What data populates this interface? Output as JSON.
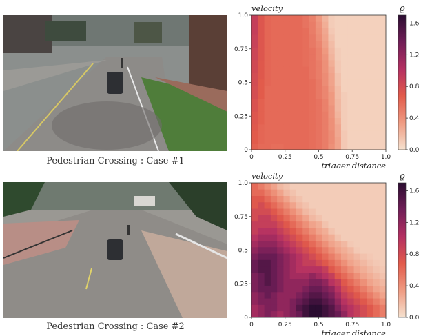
{
  "panels": [
    {
      "caption": "Pedestrian Crossing : Case #1",
      "photo": "driving-scene-intersection-pedestrian"
    },
    {
      "caption": "Pedestrian Crossing : Case #2",
      "photo": "driving-scene-crosswalk-pedestrian"
    }
  ],
  "colormap": [
    "#f5e1cf",
    "#ef9b82",
    "#e25b4b",
    "#b43062",
    "#701e57",
    "#2b0d31"
  ],
  "chart_data": [
    {
      "type": "heatmap",
      "title": "",
      "xlabel": "trigger distance",
      "ylabel": "velocity",
      "colorbar_label": "ϱ",
      "xlim": [
        0,
        1
      ],
      "ylim": [
        0,
        1
      ],
      "xticks": [
        "0",
        "0.25",
        "0.5",
        "0.75",
        "1.0"
      ],
      "yticks": [
        "0",
        "0.25",
        "0.5",
        "0.75",
        "1.0"
      ],
      "colorbar_range": [
        0,
        1.7
      ],
      "colorbar_ticks": [
        "0.0",
        "0.4",
        "0.8",
        "1.2",
        "1.6"
      ],
      "grid_size": 21,
      "description_of_values": "value grid rows from velocity 0 (bottom) to 1 (top), columns trigger distance 0 to 1",
      "values": [
        [
          0.65,
          0.6,
          0.6,
          0.58,
          0.58,
          0.6,
          0.6,
          0.6,
          0.6,
          0.58,
          0.55,
          0.5,
          0.4,
          0.3,
          0.12,
          0.08,
          0.08,
          0.08,
          0.08,
          0.08,
          0.08
        ],
        [
          0.68,
          0.62,
          0.6,
          0.6,
          0.6,
          0.6,
          0.6,
          0.6,
          0.6,
          0.58,
          0.55,
          0.5,
          0.42,
          0.3,
          0.12,
          0.08,
          0.08,
          0.08,
          0.08,
          0.08,
          0.08
        ],
        [
          0.68,
          0.62,
          0.6,
          0.6,
          0.6,
          0.6,
          0.6,
          0.6,
          0.6,
          0.58,
          0.55,
          0.5,
          0.42,
          0.28,
          0.12,
          0.08,
          0.08,
          0.08,
          0.08,
          0.08,
          0.08
        ],
        [
          0.7,
          0.62,
          0.6,
          0.6,
          0.6,
          0.6,
          0.6,
          0.6,
          0.6,
          0.58,
          0.55,
          0.5,
          0.4,
          0.28,
          0.1,
          0.08,
          0.08,
          0.08,
          0.08,
          0.08,
          0.08
        ],
        [
          0.72,
          0.65,
          0.6,
          0.6,
          0.6,
          0.6,
          0.6,
          0.6,
          0.6,
          0.58,
          0.55,
          0.5,
          0.4,
          0.25,
          0.1,
          0.08,
          0.08,
          0.08,
          0.08,
          0.08,
          0.08
        ],
        [
          0.72,
          0.65,
          0.6,
          0.6,
          0.6,
          0.6,
          0.6,
          0.6,
          0.6,
          0.58,
          0.55,
          0.5,
          0.38,
          0.22,
          0.1,
          0.08,
          0.08,
          0.08,
          0.08,
          0.08,
          0.08
        ],
        [
          0.75,
          0.65,
          0.6,
          0.6,
          0.6,
          0.6,
          0.6,
          0.6,
          0.6,
          0.58,
          0.55,
          0.48,
          0.38,
          0.2,
          0.1,
          0.08,
          0.08,
          0.08,
          0.08,
          0.08,
          0.08
        ],
        [
          0.75,
          0.65,
          0.6,
          0.6,
          0.6,
          0.6,
          0.6,
          0.6,
          0.6,
          0.58,
          0.55,
          0.48,
          0.35,
          0.2,
          0.1,
          0.08,
          0.08,
          0.08,
          0.08,
          0.08,
          0.08
        ],
        [
          0.78,
          0.68,
          0.6,
          0.6,
          0.6,
          0.6,
          0.6,
          0.6,
          0.6,
          0.58,
          0.52,
          0.45,
          0.35,
          0.18,
          0.1,
          0.08,
          0.08,
          0.08,
          0.08,
          0.08,
          0.08
        ],
        [
          0.78,
          0.68,
          0.6,
          0.6,
          0.6,
          0.6,
          0.6,
          0.6,
          0.6,
          0.58,
          0.52,
          0.45,
          0.32,
          0.18,
          0.08,
          0.08,
          0.08,
          0.08,
          0.08,
          0.08,
          0.08
        ],
        [
          0.8,
          0.68,
          0.62,
          0.6,
          0.6,
          0.6,
          0.6,
          0.6,
          0.6,
          0.58,
          0.52,
          0.42,
          0.3,
          0.15,
          0.08,
          0.08,
          0.08,
          0.08,
          0.08,
          0.08,
          0.08
        ],
        [
          0.8,
          0.7,
          0.62,
          0.6,
          0.6,
          0.6,
          0.6,
          0.6,
          0.6,
          0.55,
          0.5,
          0.42,
          0.3,
          0.15,
          0.08,
          0.08,
          0.08,
          0.08,
          0.08,
          0.08,
          0.08
        ],
        [
          0.82,
          0.7,
          0.62,
          0.6,
          0.6,
          0.6,
          0.6,
          0.6,
          0.6,
          0.55,
          0.5,
          0.4,
          0.28,
          0.12,
          0.08,
          0.08,
          0.08,
          0.08,
          0.08,
          0.08,
          0.08
        ],
        [
          0.82,
          0.7,
          0.62,
          0.6,
          0.6,
          0.6,
          0.6,
          0.6,
          0.58,
          0.55,
          0.5,
          0.4,
          0.25,
          0.12,
          0.08,
          0.08,
          0.08,
          0.08,
          0.08,
          0.08,
          0.08
        ],
        [
          0.85,
          0.72,
          0.62,
          0.6,
          0.6,
          0.6,
          0.6,
          0.6,
          0.58,
          0.55,
          0.48,
          0.38,
          0.22,
          0.1,
          0.08,
          0.08,
          0.08,
          0.08,
          0.08,
          0.08,
          0.08
        ],
        [
          0.85,
          0.72,
          0.62,
          0.6,
          0.6,
          0.6,
          0.6,
          0.6,
          0.58,
          0.55,
          0.48,
          0.35,
          0.2,
          0.1,
          0.08,
          0.08,
          0.08,
          0.08,
          0.08,
          0.08,
          0.08
        ],
        [
          0.88,
          0.72,
          0.62,
          0.6,
          0.6,
          0.6,
          0.6,
          0.6,
          0.58,
          0.52,
          0.45,
          0.32,
          0.18,
          0.08,
          0.08,
          0.08,
          0.08,
          0.08,
          0.08,
          0.08,
          0.08
        ],
        [
          0.88,
          0.72,
          0.62,
          0.6,
          0.6,
          0.6,
          0.6,
          0.6,
          0.58,
          0.52,
          0.42,
          0.3,
          0.15,
          0.08,
          0.08,
          0.08,
          0.08,
          0.08,
          0.08,
          0.08,
          0.08
        ],
        [
          0.9,
          0.72,
          0.62,
          0.6,
          0.6,
          0.6,
          0.6,
          0.6,
          0.58,
          0.5,
          0.4,
          0.28,
          0.12,
          0.08,
          0.08,
          0.08,
          0.08,
          0.08,
          0.08,
          0.08,
          0.08
        ],
        [
          0.9,
          0.72,
          0.62,
          0.6,
          0.6,
          0.6,
          0.6,
          0.6,
          0.55,
          0.5,
          0.38,
          0.25,
          0.1,
          0.08,
          0.08,
          0.08,
          0.08,
          0.08,
          0.08,
          0.08,
          0.08
        ],
        [
          0.9,
          0.72,
          0.62,
          0.6,
          0.6,
          0.6,
          0.6,
          0.6,
          0.55,
          0.48,
          0.35,
          0.22,
          0.1,
          0.08,
          0.08,
          0.08,
          0.08,
          0.08,
          0.08,
          0.08,
          0.08
        ]
      ]
    },
    {
      "type": "heatmap",
      "title": "",
      "xlabel": "trigger distance",
      "ylabel": "velocity",
      "colorbar_label": "ϱ",
      "xlim": [
        0,
        1
      ],
      "ylim": [
        0,
        1
      ],
      "xticks": [
        "0",
        "0.25",
        "0.5",
        "0.75",
        "1.0"
      ],
      "yticks": [
        "0",
        "0.25",
        "0.5",
        "0.75",
        "1.0"
      ],
      "colorbar_range": [
        0,
        1.7
      ],
      "colorbar_ticks": [
        "0.0",
        "0.4",
        "0.8",
        "1.2",
        "1.6"
      ],
      "grid_size": 21,
      "description_of_values": "value grid rows from velocity 0 (bottom) to 1 (top), columns trigger distance 0 to 1",
      "values": [
        [
          1.1,
          1.2,
          1.3,
          1.2,
          1.1,
          1.2,
          1.3,
          1.4,
          1.6,
          1.7,
          1.7,
          1.6,
          1.5,
          1.4,
          1.2,
          1.0,
          0.9,
          0.8,
          0.7,
          0.6,
          0.5
        ],
        [
          1.1,
          1.2,
          1.3,
          1.3,
          1.2,
          1.2,
          1.3,
          1.5,
          1.6,
          1.7,
          1.7,
          1.6,
          1.5,
          1.3,
          1.1,
          1.0,
          0.9,
          0.8,
          0.7,
          0.6,
          0.5
        ],
        [
          1.2,
          1.3,
          1.3,
          1.3,
          1.2,
          1.2,
          1.3,
          1.4,
          1.5,
          1.6,
          1.6,
          1.5,
          1.4,
          1.2,
          1.0,
          0.9,
          0.8,
          0.7,
          0.6,
          0.5,
          0.4
        ],
        [
          1.2,
          1.3,
          1.4,
          1.3,
          1.2,
          1.2,
          1.2,
          1.3,
          1.4,
          1.5,
          1.5,
          1.4,
          1.3,
          1.1,
          0.9,
          0.8,
          0.7,
          0.6,
          0.5,
          0.4,
          0.3
        ],
        [
          1.3,
          1.4,
          1.4,
          1.4,
          1.3,
          1.2,
          1.2,
          1.2,
          1.3,
          1.4,
          1.4,
          1.3,
          1.2,
          1.0,
          0.8,
          0.7,
          0.6,
          0.5,
          0.4,
          0.3,
          0.25
        ],
        [
          1.3,
          1.4,
          1.5,
          1.4,
          1.3,
          1.2,
          1.2,
          1.2,
          1.2,
          1.3,
          1.3,
          1.2,
          1.0,
          0.9,
          0.7,
          0.6,
          0.5,
          0.4,
          0.3,
          0.25,
          0.2
        ],
        [
          1.3,
          1.4,
          1.5,
          1.4,
          1.3,
          1.2,
          1.1,
          1.1,
          1.1,
          1.2,
          1.1,
          1.0,
          0.9,
          0.7,
          0.6,
          0.5,
          0.4,
          0.3,
          0.25,
          0.2,
          0.15
        ],
        [
          1.4,
          1.5,
          1.5,
          1.4,
          1.3,
          1.2,
          1.1,
          1.0,
          1.0,
          1.0,
          1.0,
          0.9,
          0.7,
          0.6,
          0.5,
          0.4,
          0.3,
          0.25,
          0.2,
          0.15,
          0.12
        ],
        [
          1.4,
          1.5,
          1.5,
          1.4,
          1.3,
          1.2,
          1.1,
          1.0,
          0.9,
          0.9,
          0.8,
          0.7,
          0.6,
          0.5,
          0.4,
          0.3,
          0.25,
          0.2,
          0.15,
          0.12,
          0.1
        ],
        [
          1.3,
          1.4,
          1.4,
          1.4,
          1.3,
          1.2,
          1.1,
          1.0,
          0.9,
          0.8,
          0.7,
          0.6,
          0.5,
          0.4,
          0.3,
          0.25,
          0.2,
          0.15,
          0.12,
          0.1,
          0.1
        ],
        [
          1.2,
          1.3,
          1.3,
          1.3,
          1.2,
          1.1,
          1.0,
          0.9,
          0.8,
          0.7,
          0.6,
          0.5,
          0.4,
          0.3,
          0.25,
          0.2,
          0.12,
          0.1,
          0.1,
          0.1,
          0.1
        ],
        [
          1.1,
          1.2,
          1.2,
          1.2,
          1.1,
          1.0,
          0.9,
          0.8,
          0.7,
          0.6,
          0.5,
          0.4,
          0.3,
          0.25,
          0.2,
          0.12,
          0.1,
          0.1,
          0.1,
          0.1,
          0.1
        ],
        [
          1.0,
          1.1,
          1.1,
          1.1,
          1.0,
          0.9,
          0.8,
          0.7,
          0.6,
          0.5,
          0.4,
          0.3,
          0.25,
          0.15,
          0.1,
          0.1,
          0.1,
          0.1,
          0.1,
          0.1,
          0.1
        ],
        [
          0.9,
          1.0,
          1.0,
          1.0,
          0.9,
          0.8,
          0.7,
          0.6,
          0.5,
          0.4,
          0.3,
          0.25,
          0.15,
          0.1,
          0.1,
          0.1,
          0.1,
          0.1,
          0.1,
          0.1,
          0.1
        ],
        [
          0.9,
          0.9,
          0.9,
          0.9,
          0.8,
          0.7,
          0.6,
          0.5,
          0.4,
          0.3,
          0.25,
          0.15,
          0.1,
          0.1,
          0.1,
          0.1,
          0.1,
          0.1,
          0.1,
          0.1,
          0.1
        ],
        [
          0.8,
          0.9,
          0.9,
          0.8,
          0.7,
          0.6,
          0.5,
          0.4,
          0.3,
          0.2,
          0.15,
          0.1,
          0.1,
          0.1,
          0.1,
          0.1,
          0.1,
          0.1,
          0.1,
          0.1,
          0.1
        ],
        [
          0.8,
          0.8,
          0.8,
          0.7,
          0.6,
          0.5,
          0.4,
          0.3,
          0.2,
          0.15,
          0.1,
          0.1,
          0.1,
          0.1,
          0.1,
          0.1,
          0.1,
          0.1,
          0.1,
          0.1,
          0.1
        ],
        [
          0.7,
          0.8,
          0.7,
          0.6,
          0.5,
          0.4,
          0.3,
          0.2,
          0.15,
          0.1,
          0.1,
          0.1,
          0.1,
          0.1,
          0.1,
          0.1,
          0.1,
          0.1,
          0.1,
          0.1,
          0.1
        ],
        [
          0.7,
          0.7,
          0.6,
          0.5,
          0.4,
          0.3,
          0.2,
          0.15,
          0.1,
          0.1,
          0.1,
          0.1,
          0.1,
          0.1,
          0.1,
          0.1,
          0.1,
          0.1,
          0.1,
          0.1,
          0.1
        ],
        [
          0.6,
          0.6,
          0.5,
          0.4,
          0.3,
          0.2,
          0.15,
          0.1,
          0.1,
          0.1,
          0.1,
          0.1,
          0.1,
          0.1,
          0.1,
          0.1,
          0.1,
          0.1,
          0.1,
          0.1,
          0.1
        ],
        [
          0.6,
          0.5,
          0.4,
          0.3,
          0.2,
          0.15,
          0.1,
          0.1,
          0.1,
          0.1,
          0.1,
          0.1,
          0.1,
          0.1,
          0.1,
          0.1,
          0.1,
          0.1,
          0.1,
          0.1,
          0.1
        ]
      ]
    }
  ]
}
